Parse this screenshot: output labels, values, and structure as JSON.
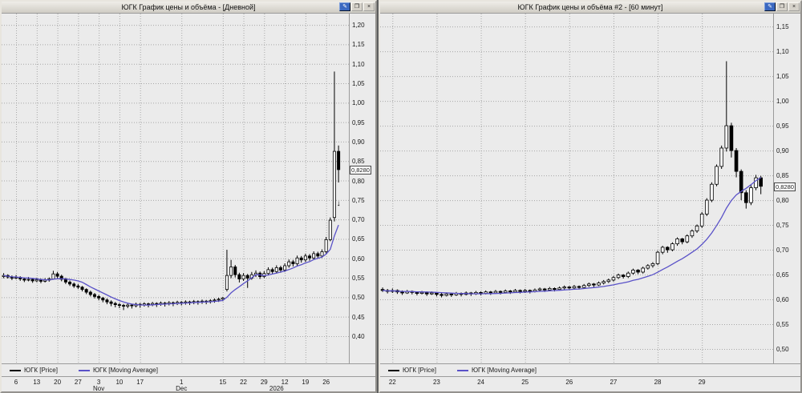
{
  "app": {
    "desktop_bg": "#5e5e5e",
    "titlebar_bg": "#d6d2ca",
    "plot_bg": "#ebebeb",
    "grid_color": "#a8a8a8",
    "candle_color": "#000000",
    "ma_color": "#5a52c8"
  },
  "window_buttons": [
    {
      "name": "edit-chart",
      "glyph": "✎",
      "style": "blue"
    },
    {
      "name": "restore-window",
      "glyph": "❐",
      "style": "gray"
    },
    {
      "name": "close-window",
      "glyph": "×",
      "style": "gray"
    }
  ],
  "chart_data": [
    {
      "type": "candlestick",
      "window_title": "ЮГК График цены и объёма - [Дневной]",
      "interval": "Дневной",
      "legend": [
        {
          "label": "ЮГК [Price]",
          "color": "#000000"
        },
        {
          "label": "ЮГК [Moving Average]",
          "color": "#5a52c8"
        }
      ],
      "y_ticks": [
        1.2,
        1.15,
        1.1,
        1.05,
        1.0,
        0.95,
        0.9,
        0.85,
        0.8,
        0.75,
        0.7,
        0.65,
        0.6,
        0.55,
        0.5,
        0.45,
        0.4
      ],
      "y_range": [
        0.33,
        1.229
      ],
      "current_price": 0.828,
      "current_price_label": "0,8280",
      "slots": 84,
      "ma_window": 8,
      "x_ticks": [
        {
          "index": 3,
          "label": "6"
        },
        {
          "index": 8,
          "label": "13"
        },
        {
          "index": 13,
          "label": "20"
        },
        {
          "index": 18,
          "label": "27"
        },
        {
          "index": 23,
          "label": "3"
        },
        {
          "index": 28,
          "label": "10"
        },
        {
          "index": 33,
          "label": "17"
        },
        {
          "index": 43,
          "label": "1"
        },
        {
          "index": 53,
          "label": "15"
        },
        {
          "index": 58,
          "label": "22"
        },
        {
          "index": 63,
          "label": "29"
        },
        {
          "index": 68,
          "label": "12"
        },
        {
          "index": 73,
          "label": "19"
        },
        {
          "index": 78,
          "label": "26"
        }
      ],
      "x_groups": [
        {
          "index": 23,
          "label": "Nov"
        },
        {
          "index": 43,
          "label": "Dec"
        },
        {
          "index": 66,
          "label": "2026"
        }
      ],
      "markers": [
        {
          "index": 81,
          "price": 0.735,
          "glyph": "↓"
        }
      ],
      "candles": [
        [
          0.553,
          0.562,
          0.549,
          0.556
        ],
        [
          0.556,
          0.559,
          0.548,
          0.552
        ],
        [
          0.552,
          0.556,
          0.544,
          0.549
        ],
        [
          0.549,
          0.557,
          0.546,
          0.551
        ],
        [
          0.551,
          0.554,
          0.542,
          0.547
        ],
        [
          0.547,
          0.551,
          0.539,
          0.544
        ],
        [
          0.544,
          0.552,
          0.541,
          0.546
        ],
        [
          0.546,
          0.549,
          0.537,
          0.542
        ],
        [
          0.542,
          0.55,
          0.539,
          0.545
        ],
        [
          0.545,
          0.548,
          0.536,
          0.541
        ],
        [
          0.541,
          0.549,
          0.538,
          0.544
        ],
        [
          0.544,
          0.551,
          0.54,
          0.547
        ],
        [
          0.547,
          0.568,
          0.545,
          0.56
        ],
        [
          0.56,
          0.565,
          0.549,
          0.554
        ],
        [
          0.554,
          0.558,
          0.541,
          0.546
        ],
        [
          0.546,
          0.55,
          0.534,
          0.539
        ],
        [
          0.539,
          0.543,
          0.529,
          0.534
        ],
        [
          0.534,
          0.538,
          0.524,
          0.529
        ],
        [
          0.529,
          0.534,
          0.521,
          0.526
        ],
        [
          0.526,
          0.529,
          0.515,
          0.52
        ],
        [
          0.52,
          0.523,
          0.508,
          0.513
        ],
        [
          0.513,
          0.517,
          0.502,
          0.507
        ],
        [
          0.507,
          0.511,
          0.497,
          0.502
        ],
        [
          0.502,
          0.506,
          0.492,
          0.498
        ],
        [
          0.498,
          0.501,
          0.487,
          0.493
        ],
        [
          0.493,
          0.497,
          0.482,
          0.488
        ],
        [
          0.488,
          0.492,
          0.477,
          0.484
        ],
        [
          0.484,
          0.488,
          0.474,
          0.481
        ],
        [
          0.481,
          0.485,
          0.472,
          0.479
        ],
        [
          0.479,
          0.483,
          0.467,
          0.477
        ],
        [
          0.477,
          0.484,
          0.472,
          0.48
        ],
        [
          0.48,
          0.483,
          0.471,
          0.478
        ],
        [
          0.478,
          0.486,
          0.474,
          0.482
        ],
        [
          0.482,
          0.485,
          0.473,
          0.48
        ],
        [
          0.48,
          0.487,
          0.476,
          0.483
        ],
        [
          0.483,
          0.486,
          0.474,
          0.481
        ],
        [
          0.481,
          0.488,
          0.477,
          0.484
        ],
        [
          0.484,
          0.487,
          0.475,
          0.482
        ],
        [
          0.482,
          0.489,
          0.478,
          0.485
        ],
        [
          0.485,
          0.488,
          0.476,
          0.483
        ],
        [
          0.483,
          0.49,
          0.479,
          0.486
        ],
        [
          0.486,
          0.489,
          0.477,
          0.484
        ],
        [
          0.484,
          0.491,
          0.48,
          0.487
        ],
        [
          0.487,
          0.49,
          0.479,
          0.486
        ],
        [
          0.486,
          0.492,
          0.481,
          0.488
        ],
        [
          0.488,
          0.491,
          0.48,
          0.487
        ],
        [
          0.487,
          0.493,
          0.482,
          0.489
        ],
        [
          0.489,
          0.492,
          0.481,
          0.488
        ],
        [
          0.488,
          0.494,
          0.483,
          0.49
        ],
        [
          0.49,
          0.493,
          0.482,
          0.489
        ],
        [
          0.489,
          0.495,
          0.484,
          0.491
        ],
        [
          0.491,
          0.497,
          0.486,
          0.493
        ],
        [
          0.493,
          0.499,
          0.488,
          0.495
        ],
        [
          0.495,
          0.501,
          0.49,
          0.498
        ],
        [
          0.52,
          0.622,
          0.515,
          0.556
        ],
        [
          0.556,
          0.596,
          0.549,
          0.578
        ],
        [
          0.578,
          0.583,
          0.551,
          0.558
        ],
        [
          0.558,
          0.563,
          0.538,
          0.547
        ],
        [
          0.547,
          0.562,
          0.542,
          0.556
        ],
        [
          0.556,
          0.56,
          0.524,
          0.549
        ],
        [
          0.549,
          0.565,
          0.545,
          0.558
        ],
        [
          0.558,
          0.569,
          0.552,
          0.562
        ],
        [
          0.562,
          0.566,
          0.547,
          0.553
        ],
        [
          0.553,
          0.567,
          0.549,
          0.561
        ],
        [
          0.561,
          0.577,
          0.556,
          0.571
        ],
        [
          0.571,
          0.576,
          0.559,
          0.566
        ],
        [
          0.566,
          0.582,
          0.561,
          0.576
        ],
        [
          0.576,
          0.581,
          0.563,
          0.57
        ],
        [
          0.57,
          0.587,
          0.565,
          0.581
        ],
        [
          0.581,
          0.597,
          0.576,
          0.591
        ],
        [
          0.591,
          0.596,
          0.579,
          0.586
        ],
        [
          0.586,
          0.607,
          0.581,
          0.601
        ],
        [
          0.601,
          0.606,
          0.589,
          0.596
        ],
        [
          0.596,
          0.612,
          0.591,
          0.606
        ],
        [
          0.606,
          0.611,
          0.594,
          0.601
        ],
        [
          0.601,
          0.618,
          0.596,
          0.612
        ],
        [
          0.612,
          0.617,
          0.599,
          0.606
        ],
        [
          0.606,
          0.623,
          0.601,
          0.617
        ],
        [
          0.617,
          0.655,
          0.612,
          0.648
        ],
        [
          0.648,
          0.705,
          0.644,
          0.698
        ],
        [
          0.705,
          1.08,
          0.695,
          0.875
        ],
        [
          0.875,
          0.89,
          0.795,
          0.828
        ]
      ]
    },
    {
      "type": "candlestick",
      "window_title": "ЮГК График цены и объёма #2 - [60 минут]",
      "interval": "60 минут",
      "legend": [
        {
          "label": "ЮГК [Price]",
          "color": "#000000"
        },
        {
          "label": "ЮГК [Moving Average]",
          "color": "#5a52c8"
        }
      ],
      "y_ticks": [
        1.15,
        1.1,
        1.05,
        1.0,
        0.95,
        0.9,
        0.85,
        0.8,
        0.75,
        0.7,
        0.65,
        0.6,
        0.55,
        0.5
      ],
      "y_range": [
        0.471,
        1.176
      ],
      "current_price": 0.828,
      "current_price_label": "0,8280",
      "slots": 80,
      "ma_window": 13,
      "x_ticks": [
        {
          "index": 2,
          "label": "22"
        },
        {
          "index": 11,
          "label": "23"
        },
        {
          "index": 20,
          "label": "24"
        },
        {
          "index": 29,
          "label": "25"
        },
        {
          "index": 38,
          "label": "26"
        },
        {
          "index": 47,
          "label": "27"
        },
        {
          "index": 56,
          "label": "28"
        },
        {
          "index": 65,
          "label": "29"
        }
      ],
      "x_groups": [],
      "markers": [],
      "candles": [
        [
          0.62,
          0.624,
          0.615,
          0.618
        ],
        [
          0.618,
          0.621,
          0.612,
          0.616
        ],
        [
          0.616,
          0.622,
          0.613,
          0.618
        ],
        [
          0.618,
          0.62,
          0.611,
          0.615
        ],
        [
          0.615,
          0.618,
          0.609,
          0.613
        ],
        [
          0.613,
          0.619,
          0.611,
          0.616
        ],
        [
          0.616,
          0.618,
          0.61,
          0.614
        ],
        [
          0.614,
          0.616,
          0.608,
          0.612
        ],
        [
          0.612,
          0.617,
          0.61,
          0.614
        ],
        [
          0.614,
          0.616,
          0.607,
          0.611
        ],
        [
          0.611,
          0.616,
          0.609,
          0.613
        ],
        [
          0.613,
          0.615,
          0.606,
          0.61
        ],
        [
          0.61,
          0.613,
          0.604,
          0.608
        ],
        [
          0.608,
          0.614,
          0.606,
          0.611
        ],
        [
          0.611,
          0.613,
          0.605,
          0.609
        ],
        [
          0.609,
          0.615,
          0.607,
          0.612
        ],
        [
          0.612,
          0.614,
          0.606,
          0.61
        ],
        [
          0.61,
          0.616,
          0.608,
          0.613
        ],
        [
          0.613,
          0.615,
          0.607,
          0.611
        ],
        [
          0.611,
          0.617,
          0.609,
          0.614
        ],
        [
          0.614,
          0.616,
          0.608,
          0.612
        ],
        [
          0.612,
          0.618,
          0.61,
          0.615
        ],
        [
          0.615,
          0.617,
          0.609,
          0.613
        ],
        [
          0.613,
          0.619,
          0.611,
          0.616
        ],
        [
          0.616,
          0.618,
          0.61,
          0.614
        ],
        [
          0.614,
          0.62,
          0.612,
          0.617
        ],
        [
          0.617,
          0.619,
          0.611,
          0.615
        ],
        [
          0.615,
          0.621,
          0.613,
          0.618
        ],
        [
          0.618,
          0.62,
          0.612,
          0.616
        ],
        [
          0.616,
          0.621,
          0.613,
          0.618
        ],
        [
          0.618,
          0.62,
          0.612,
          0.616
        ],
        [
          0.616,
          0.622,
          0.614,
          0.619
        ],
        [
          0.619,
          0.624,
          0.616,
          0.621
        ],
        [
          0.621,
          0.623,
          0.615,
          0.619
        ],
        [
          0.619,
          0.625,
          0.617,
          0.622
        ],
        [
          0.622,
          0.624,
          0.616,
          0.62
        ],
        [
          0.62,
          0.626,
          0.618,
          0.623
        ],
        [
          0.623,
          0.628,
          0.619,
          0.625
        ],
        [
          0.625,
          0.627,
          0.619,
          0.623
        ],
        [
          0.623,
          0.629,
          0.621,
          0.626
        ],
        [
          0.626,
          0.628,
          0.62,
          0.624
        ],
        [
          0.624,
          0.631,
          0.622,
          0.628
        ],
        [
          0.628,
          0.634,
          0.625,
          0.631
        ],
        [
          0.631,
          0.633,
          0.625,
          0.629
        ],
        [
          0.629,
          0.636,
          0.627,
          0.633
        ],
        [
          0.633,
          0.639,
          0.63,
          0.636
        ],
        [
          0.636,
          0.642,
          0.633,
          0.639
        ],
        [
          0.639,
          0.647,
          0.636,
          0.644
        ],
        [
          0.644,
          0.652,
          0.641,
          0.649
        ],
        [
          0.649,
          0.651,
          0.642,
          0.646
        ],
        [
          0.646,
          0.656,
          0.643,
          0.653
        ],
        [
          0.653,
          0.662,
          0.65,
          0.659
        ],
        [
          0.659,
          0.661,
          0.651,
          0.655
        ],
        [
          0.655,
          0.666,
          0.652,
          0.663
        ],
        [
          0.663,
          0.671,
          0.66,
          0.668
        ],
        [
          0.668,
          0.675,
          0.664,
          0.672
        ],
        [
          0.672,
          0.698,
          0.669,
          0.695
        ],
        [
          0.695,
          0.708,
          0.691,
          0.705
        ],
        [
          0.705,
          0.707,
          0.694,
          0.7
        ],
        [
          0.7,
          0.715,
          0.697,
          0.712
        ],
        [
          0.712,
          0.725,
          0.708,
          0.722
        ],
        [
          0.722,
          0.724,
          0.711,
          0.716
        ],
        [
          0.716,
          0.731,
          0.713,
          0.728
        ],
        [
          0.728,
          0.741,
          0.724,
          0.738
        ],
        [
          0.738,
          0.751,
          0.734,
          0.748
        ],
        [
          0.748,
          0.776,
          0.744,
          0.772
        ],
        [
          0.772,
          0.804,
          0.768,
          0.8
        ],
        [
          0.8,
          0.836,
          0.796,
          0.832
        ],
        [
          0.832,
          0.872,
          0.828,
          0.868
        ],
        [
          0.868,
          0.91,
          0.863,
          0.905
        ],
        [
          0.905,
          1.08,
          0.898,
          0.95
        ],
        [
          0.95,
          0.956,
          0.886,
          0.9
        ],
        [
          0.9,
          0.905,
          0.846,
          0.858
        ],
        [
          0.858,
          0.862,
          0.8,
          0.815
        ],
        [
          0.815,
          0.82,
          0.783,
          0.795
        ],
        [
          0.795,
          0.83,
          0.79,
          0.825
        ],
        [
          0.825,
          0.851,
          0.82,
          0.845
        ],
        [
          0.845,
          0.849,
          0.812,
          0.828
        ]
      ]
    }
  ]
}
